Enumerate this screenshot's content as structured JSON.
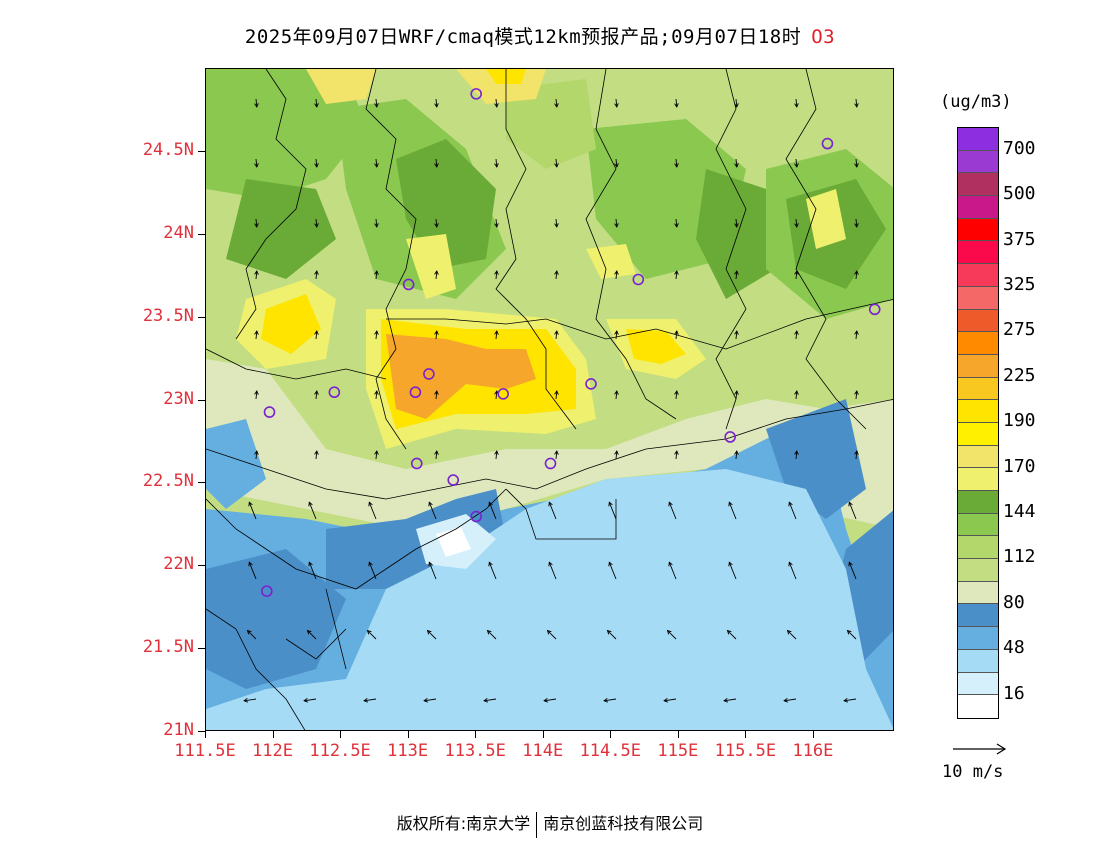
{
  "title": "2025年09月07日WRF/cmaq模式12km预报产品;09月07日18时",
  "species": "O3",
  "map": {
    "lat_labels": [
      "24.5N",
      "24N",
      "23.5N",
      "23N",
      "22.5N",
      "22N",
      "21.5N",
      "21N"
    ],
    "lon_labels": [
      "111.5E",
      "112E",
      "112.5E",
      "113E",
      "113.5E",
      "114E",
      "114.5E",
      "115E",
      "115.5E",
      "116E"
    ],
    "lat_range": [
      21,
      25
    ],
    "lon_range": [
      111.5,
      116.6
    ],
    "stations": [
      {
        "lon": 113.5,
        "lat": 24.85
      },
      {
        "lon": 116.1,
        "lat": 24.55
      },
      {
        "lon": 113.0,
        "lat": 23.7
      },
      {
        "lon": 114.7,
        "lat": 23.73
      },
      {
        "lon": 116.45,
        "lat": 23.55
      },
      {
        "lon": 112.45,
        "lat": 23.05
      },
      {
        "lon": 113.05,
        "lat": 23.05
      },
      {
        "lon": 113.15,
        "lat": 23.16
      },
      {
        "lon": 113.7,
        "lat": 23.04
      },
      {
        "lon": 114.35,
        "lat": 23.1
      },
      {
        "lon": 111.97,
        "lat": 22.93
      },
      {
        "lon": 115.38,
        "lat": 22.78
      },
      {
        "lon": 113.06,
        "lat": 22.62
      },
      {
        "lon": 113.33,
        "lat": 22.52
      },
      {
        "lon": 114.05,
        "lat": 22.62
      },
      {
        "lon": 113.5,
        "lat": 22.3
      },
      {
        "lon": 111.95,
        "lat": 21.85
      }
    ]
  },
  "colorbar": {
    "unit": "(ug/m3)",
    "colors": [
      "#8d2fe0",
      "#9a3ad2",
      "#b03060",
      "#c8188a",
      "#ff0000",
      "#fa0a4a",
      "#f73a5a",
      "#f56868",
      "#ee5a2a",
      "#ff8a00",
      "#f6a62a",
      "#f9c820",
      "#ffe400",
      "#fff000",
      "#f2e36a",
      "#eef06e",
      "#6aaa36",
      "#8ac850",
      "#b3d76a",
      "#c3dd82",
      "#dfe8bc",
      "#4a8fc8",
      "#64aee0",
      "#a6dbf5",
      "#d5effb",
      "#ffffff"
    ],
    "labels": [
      {
        "text": "700",
        "index": 1
      },
      {
        "text": "500",
        "index": 3
      },
      {
        "text": "375",
        "index": 5
      },
      {
        "text": "325",
        "index": 7
      },
      {
        "text": "275",
        "index": 9
      },
      {
        "text": "225",
        "index": 11
      },
      {
        "text": "190",
        "index": 13
      },
      {
        "text": "170",
        "index": 15
      },
      {
        "text": "144",
        "index": 17
      },
      {
        "text": "112",
        "index": 19
      },
      {
        "text": "80",
        "index": 21
      },
      {
        "text": "48",
        "index": 23
      },
      {
        "text": "16",
        "index": 25
      }
    ]
  },
  "wind_reference": "10 m/s",
  "footer": {
    "left": "版权所有:南京大学",
    "right": "南京创蓝科技有限公司"
  }
}
